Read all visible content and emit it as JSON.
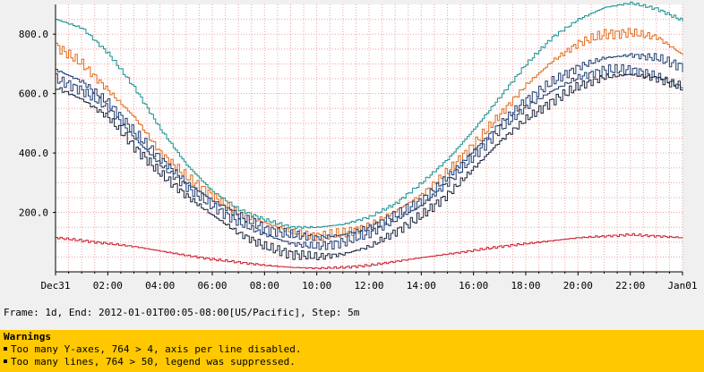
{
  "chart_data": {
    "type": "line",
    "title": "",
    "xlabel": "",
    "ylabel": "",
    "ylim": [
      0,
      900
    ],
    "xlim_hours": [
      0,
      24
    ],
    "x_tick_labels": [
      "Dec31",
      "02:00",
      "04:00",
      "06:00",
      "08:00",
      "10:00",
      "12:00",
      "14:00",
      "16:00",
      "18:00",
      "20:00",
      "22:00",
      "Jan01"
    ],
    "y_ticks": [
      200,
      400,
      600,
      800
    ],
    "y_tick_labels": [
      "200.0",
      "400.0",
      "600.0",
      "800.0"
    ],
    "grid": true,
    "series": [
      {
        "color": "#1a9090",
        "points": [
          [
            0,
            850
          ],
          [
            1,
            820
          ],
          [
            2,
            735
          ],
          [
            3,
            620
          ],
          [
            4,
            480
          ],
          [
            5,
            360
          ],
          [
            6,
            270
          ],
          [
            7,
            210
          ],
          [
            8,
            175
          ],
          [
            9,
            150
          ],
          [
            10,
            150
          ],
          [
            11,
            160
          ],
          [
            12,
            185
          ],
          [
            13,
            230
          ],
          [
            14,
            300
          ],
          [
            15,
            380
          ],
          [
            16,
            480
          ],
          [
            17,
            590
          ],
          [
            18,
            700
          ],
          [
            19,
            790
          ],
          [
            20,
            850
          ],
          [
            21,
            890
          ],
          [
            22,
            905
          ],
          [
            23,
            885
          ],
          [
            24,
            845
          ]
        ]
      },
      {
        "color": "#e06a1a",
        "points": [
          [
            0,
            760
          ],
          [
            1,
            700
          ],
          [
            2,
            610
          ],
          [
            3,
            520
          ],
          [
            4,
            400
          ],
          [
            5,
            320
          ],
          [
            6,
            255
          ],
          [
            7,
            195
          ],
          [
            8,
            165
          ],
          [
            9,
            135
          ],
          [
            10,
            120
          ],
          [
            11,
            130
          ],
          [
            12,
            155
          ],
          [
            13,
            205
          ],
          [
            14,
            260
          ],
          [
            15,
            340
          ],
          [
            16,
            430
          ],
          [
            17,
            530
          ],
          [
            18,
            630
          ],
          [
            19,
            710
          ],
          [
            20,
            770
          ],
          [
            21,
            800
          ],
          [
            22,
            805
          ],
          [
            23,
            790
          ],
          [
            24,
            730
          ]
        ]
      },
      {
        "color": "#1e3c70",
        "points": [
          [
            0,
            680
          ],
          [
            1,
            640
          ],
          [
            2,
            570
          ],
          [
            3,
            470
          ],
          [
            4,
            380
          ],
          [
            5,
            300
          ],
          [
            6,
            240
          ],
          [
            7,
            190
          ],
          [
            8,
            145
          ],
          [
            9,
            125
          ],
          [
            10,
            115
          ],
          [
            11,
            125
          ],
          [
            12,
            150
          ],
          [
            13,
            190
          ],
          [
            14,
            240
          ],
          [
            15,
            320
          ],
          [
            16,
            410
          ],
          [
            17,
            500
          ],
          [
            18,
            580
          ],
          [
            19,
            640
          ],
          [
            20,
            690
          ],
          [
            21,
            720
          ],
          [
            22,
            730
          ],
          [
            23,
            720
          ],
          [
            24,
            690
          ]
        ]
      },
      {
        "color": "#1e3c70",
        "points": [
          [
            0,
            650
          ],
          [
            1,
            610
          ],
          [
            2,
            550
          ],
          [
            3,
            450
          ],
          [
            4,
            360
          ],
          [
            5,
            285
          ],
          [
            6,
            220
          ],
          [
            7,
            165
          ],
          [
            8,
            125
          ],
          [
            9,
            95
          ],
          [
            10,
            85
          ],
          [
            11,
            100
          ],
          [
            12,
            130
          ],
          [
            13,
            175
          ],
          [
            14,
            225
          ],
          [
            15,
            300
          ],
          [
            16,
            390
          ],
          [
            17,
            480
          ],
          [
            18,
            555
          ],
          [
            19,
            610
          ],
          [
            20,
            655
          ],
          [
            21,
            680
          ],
          [
            22,
            680
          ],
          [
            23,
            660
          ],
          [
            24,
            620
          ]
        ]
      },
      {
        "color": "#17223a",
        "points": [
          [
            0,
            620
          ],
          [
            1,
            580
          ],
          [
            2,
            520
          ],
          [
            3,
            420
          ],
          [
            4,
            330
          ],
          [
            5,
            255
          ],
          [
            6,
            190
          ],
          [
            7,
            130
          ],
          [
            8,
            85
          ],
          [
            9,
            60
          ],
          [
            10,
            50
          ],
          [
            11,
            60
          ],
          [
            12,
            85
          ],
          [
            13,
            135
          ],
          [
            14,
            190
          ],
          [
            15,
            260
          ],
          [
            16,
            350
          ],
          [
            17,
            440
          ],
          [
            18,
            515
          ],
          [
            19,
            575
          ],
          [
            20,
            625
          ],
          [
            21,
            655
          ],
          [
            22,
            665
          ],
          [
            23,
            650
          ],
          [
            24,
            620
          ]
        ]
      },
      {
        "color": "#cc1a2a",
        "points": [
          [
            0,
            115
          ],
          [
            1,
            105
          ],
          [
            2,
            95
          ],
          [
            3,
            85
          ],
          [
            4,
            70
          ],
          [
            5,
            55
          ],
          [
            6,
            42
          ],
          [
            7,
            32
          ],
          [
            8,
            22
          ],
          [
            9,
            15
          ],
          [
            10,
            12
          ],
          [
            11,
            15
          ],
          [
            12,
            22
          ],
          [
            13,
            35
          ],
          [
            14,
            48
          ],
          [
            15,
            60
          ],
          [
            16,
            72
          ],
          [
            17,
            85
          ],
          [
            18,
            95
          ],
          [
            19,
            105
          ],
          [
            20,
            115
          ],
          [
            21,
            120
          ],
          [
            22,
            125
          ],
          [
            23,
            120
          ],
          [
            24,
            115
          ]
        ]
      }
    ]
  },
  "footer": {
    "frame_text": "Frame: 1d, End: 2012-01-01T00:05-08:00[US/Pacific], Step: 5m"
  },
  "warnings": {
    "title": "Warnings",
    "lines": [
      "Too many Y-axes, 764 > 4, axis per line disabled.",
      "Too many lines, 764 > 50, legend was suppressed."
    ]
  },
  "colors": {
    "background": "#f0f0f0",
    "plot_background": "#ffffff",
    "grid": "#f0a0a0",
    "warning_bar": "#ffc800"
  }
}
